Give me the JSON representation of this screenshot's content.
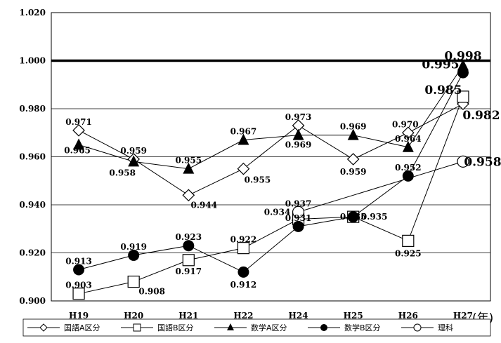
{
  "chart_data": {
    "type": "line",
    "categories": [
      "H19",
      "H20",
      "H21",
      "H22",
      "H24",
      "H25",
      "H26",
      "H27"
    ],
    "x_unit": "(年)",
    "ylim": [
      0.9,
      1.02
    ],
    "y_ticks": [
      "0.900",
      "0.920",
      "0.940",
      "0.960",
      "0.980",
      "1.000",
      "1.020"
    ],
    "grid": true,
    "reference_line": 1.0,
    "legend_position": "bottom",
    "series": [
      {
        "name": "国語A区分",
        "marker": "diamond-open",
        "values": [
          0.971,
          0.959,
          0.944,
          0.955,
          0.973,
          0.959,
          0.97,
          0.982
        ],
        "labels": [
          "0.971",
          "0.959",
          "0.944",
          "0.955",
          "0.973",
          "0.959",
          "0.970",
          "0.982"
        ]
      },
      {
        "name": "国語B区分",
        "marker": "square-open",
        "values": [
          0.903,
          0.908,
          0.917,
          0.922,
          0.934,
          0.935,
          0.925,
          0.985
        ],
        "labels": [
          "0.903",
          "0.908",
          "0.917",
          "0.922",
          "0.934",
          "0.935",
          "0.925",
          "0.985"
        ]
      },
      {
        "name": "数学A区分",
        "marker": "triangle-filled",
        "values": [
          0.965,
          0.958,
          0.955,
          0.967,
          0.969,
          0.969,
          0.964,
          0.998
        ],
        "labels": [
          "0.965",
          "0.958",
          "0.955",
          "0.967",
          "0.969",
          "0.969",
          "0.964",
          "0.998"
        ]
      },
      {
        "name": "数学B区分",
        "marker": "circle-filled",
        "values": [
          0.913,
          0.919,
          0.923,
          0.912,
          0.931,
          0.935,
          0.952,
          0.995
        ],
        "labels": [
          "0.913",
          "0.919",
          "0.923",
          "0.912",
          "0.931",
          "0.935",
          "0.952",
          "0.995"
        ]
      },
      {
        "name": "理科",
        "marker": "circle-open",
        "values": [
          null,
          null,
          null,
          null,
          0.937,
          null,
          null,
          0.958
        ],
        "labels": [
          "",
          "",
          "",
          "",
          "0.937",
          "",
          "",
          "0.958"
        ]
      }
    ]
  }
}
